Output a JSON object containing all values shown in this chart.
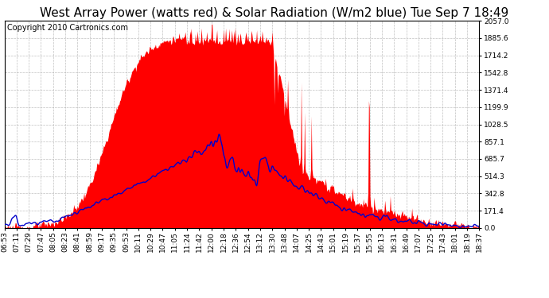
{
  "title": "West Array Power (watts red) & Solar Radiation (W/m2 blue) Tue Sep 7 18:49",
  "copyright": "Copyright 2010 Cartronics.com",
  "ymax": 2057.0,
  "yticks": [
    0.0,
    171.4,
    342.8,
    514.3,
    685.7,
    857.1,
    1028.5,
    1199.9,
    1371.4,
    1542.8,
    1714.2,
    1885.6,
    2057.0
  ],
  "x_labels": [
    "06:53",
    "07:11",
    "07:29",
    "07:47",
    "08:05",
    "08:23",
    "08:41",
    "08:59",
    "09:17",
    "09:35",
    "09:53",
    "10:11",
    "10:29",
    "10:47",
    "11:05",
    "11:24",
    "11:42",
    "12:00",
    "12:18",
    "12:36",
    "12:54",
    "13:12",
    "13:30",
    "13:48",
    "14:07",
    "14:25",
    "14:43",
    "15:01",
    "15:19",
    "15:37",
    "15:55",
    "16:13",
    "16:31",
    "16:49",
    "17:07",
    "17:25",
    "17:43",
    "18:01",
    "18:19",
    "18:37"
  ],
  "bg_color": "#ffffff",
  "plot_bg_color": "#ffffff",
  "red_color": "#ff0000",
  "blue_color": "#0000cc",
  "grid_color": "#b0b0b0",
  "title_fontsize": 11,
  "copyright_fontsize": 7,
  "tick_fontsize": 6.5
}
